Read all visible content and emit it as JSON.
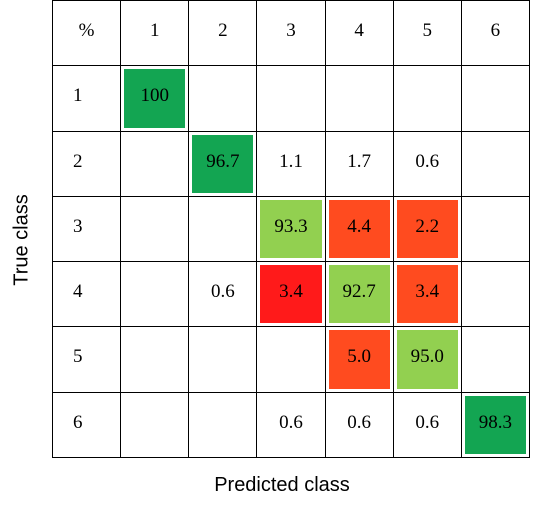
{
  "chart_data": {
    "type": "heatmap",
    "corner_label": "%",
    "x_categories": [
      "1",
      "2",
      "3",
      "4",
      "5",
      "6"
    ],
    "y_categories": [
      "1",
      "2",
      "3",
      "4",
      "5",
      "6"
    ],
    "xlabel": "Predicted class",
    "ylabel": "True class",
    "matrix": [
      [
        "100",
        "",
        "",
        "",
        "",
        ""
      ],
      [
        "",
        "96.7",
        "1.1",
        "1.7",
        "0.6",
        ""
      ],
      [
        "",
        "",
        "93.3",
        "4.4",
        "2.2",
        ""
      ],
      [
        "",
        "0.6",
        "3.4",
        "92.7",
        "3.4",
        ""
      ],
      [
        "",
        "",
        "",
        "5.0",
        "95.0",
        ""
      ],
      [
        "",
        "",
        "0.6",
        "0.6",
        "0.6",
        "98.3"
      ]
    ],
    "cell_colors": [
      [
        "#13a552",
        "",
        "",
        "",
        "",
        ""
      ],
      [
        "",
        "#13a552",
        "",
        "",
        "",
        ""
      ],
      [
        "",
        "",
        "#92d050",
        "#ff4b1f",
        "#ff4b1f",
        ""
      ],
      [
        "",
        "",
        "#ff1a1a",
        "#92d050",
        "#ff4b1f",
        ""
      ],
      [
        "",
        "",
        "",
        "#ff4b1f",
        "#92d050",
        ""
      ],
      [
        "",
        "",
        "",
        "",
        "",
        "#13a552"
      ]
    ]
  }
}
